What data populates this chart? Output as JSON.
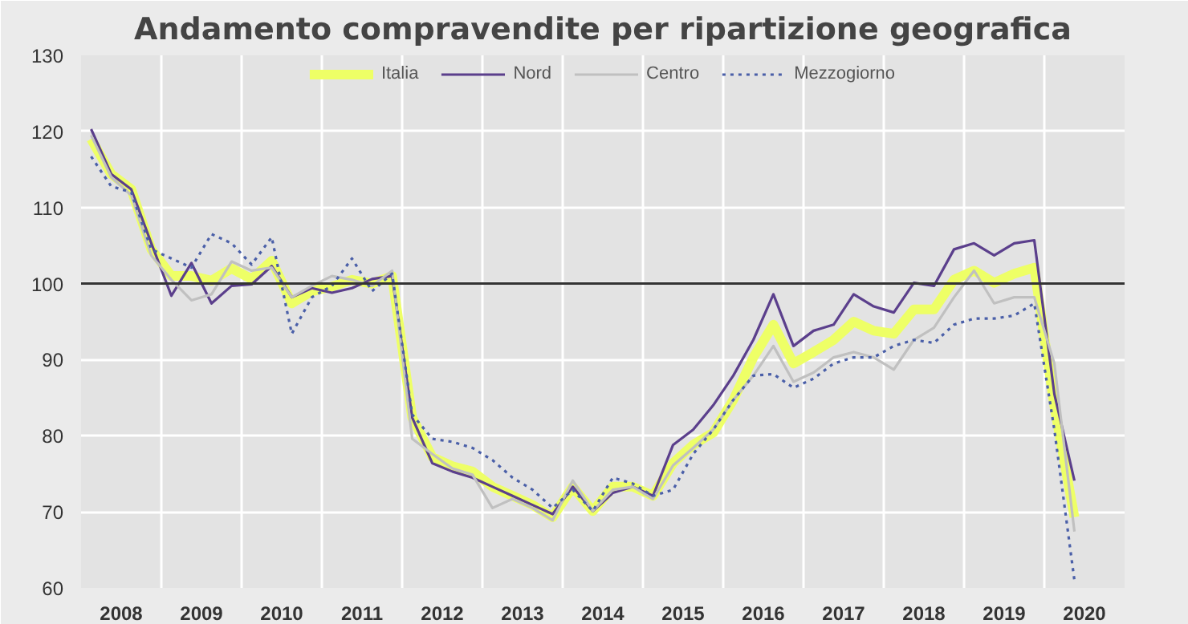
{
  "chart_data": {
    "type": "line",
    "title": "Andamento compravendite per ripartizione geografica",
    "x": [
      2008.125,
      2008.375,
      2008.625,
      2008.875,
      2009.125,
      2009.375,
      2009.625,
      2009.875,
      2010.125,
      2010.375,
      2010.625,
      2010.875,
      2011.125,
      2011.375,
      2011.625,
      2011.875,
      2012.125,
      2012.375,
      2012.625,
      2012.875,
      2013.125,
      2013.375,
      2013.625,
      2013.875,
      2014.125,
      2014.375,
      2014.625,
      2014.875,
      2015.125,
      2015.375,
      2015.625,
      2015.875,
      2016.125,
      2016.375,
      2016.625,
      2016.875,
      2017.125,
      2017.375,
      2017.625,
      2017.875,
      2018.125,
      2018.375,
      2018.625,
      2018.875,
      2019.125,
      2019.375,
      2019.625,
      2019.875,
      2020.125,
      2020.375
    ],
    "series": [
      {
        "name": "Italia",
        "color": "#eeff66",
        "values": [
          119.0,
          114.4,
          112.4,
          104.5,
          101.0,
          101.0,
          100.4,
          102.0,
          100.6,
          103.0,
          97.4,
          99.0,
          99.6,
          100.5,
          100.0,
          101.0,
          82.4,
          77.2,
          76.0,
          75.3,
          73.3,
          72.1,
          70.9,
          69.3,
          73.3,
          70.1,
          73.3,
          73.3,
          72.1,
          76.4,
          78.8,
          80.4,
          84.7,
          90.3,
          94.6,
          89.5,
          91.0,
          92.6,
          95.0,
          93.8,
          93.4,
          96.6,
          96.6,
          100.5,
          101.7,
          100.1,
          101.3,
          102.1,
          83.9,
          69.3
        ]
      },
      {
        "name": "Nord",
        "color": "#5b3f8c",
        "values": [
          120.3,
          114.4,
          112.4,
          105.3,
          98.4,
          102.7,
          97.4,
          99.7,
          99.9,
          102.3,
          98.2,
          99.4,
          98.8,
          99.4,
          100.6,
          101.0,
          82.4,
          76.4,
          75.3,
          74.5,
          73.3,
          72.1,
          70.9,
          69.7,
          73.3,
          70.1,
          72.5,
          73.3,
          72.1,
          78.8,
          80.8,
          84.0,
          87.9,
          92.6,
          98.6,
          91.8,
          93.8,
          94.6,
          98.6,
          97.0,
          96.2,
          100.1,
          99.7,
          104.5,
          105.3,
          103.7,
          105.3,
          105.7,
          85.5,
          74.1
        ]
      },
      {
        "name": "Centro",
        "color": "#c0c0c0",
        "values": [
          119.5,
          114.0,
          111.6,
          103.7,
          100.5,
          97.8,
          98.6,
          102.9,
          101.7,
          102.1,
          98.2,
          99.7,
          101.0,
          100.5,
          99.7,
          101.7,
          79.6,
          77.6,
          75.7,
          74.9,
          70.5,
          71.7,
          70.5,
          68.9,
          74.1,
          70.1,
          72.9,
          73.3,
          71.7,
          76.1,
          78.4,
          80.8,
          84.7,
          87.9,
          91.8,
          87.1,
          88.3,
          90.3,
          91.0,
          90.3,
          88.7,
          92.6,
          94.2,
          98.2,
          101.7,
          97.4,
          98.2,
          98.2,
          89.5,
          67.4
        ]
      },
      {
        "name": "Mezzogiorno",
        "color": "#4a5fa8",
        "line_style": "dotted",
        "values": [
          116.7,
          112.8,
          112.0,
          104.5,
          103.3,
          102.1,
          106.5,
          105.3,
          102.5,
          106.1,
          93.4,
          98.2,
          99.7,
          103.3,
          99.0,
          101.3,
          82.8,
          79.6,
          79.2,
          78.4,
          76.8,
          74.5,
          72.9,
          70.5,
          72.9,
          70.1,
          74.5,
          73.7,
          72.1,
          72.9,
          77.6,
          80.8,
          84.7,
          87.9,
          88.1,
          86.3,
          87.5,
          89.5,
          90.3,
          90.3,
          91.8,
          92.6,
          92.2,
          94.6,
          95.4,
          95.4,
          95.8,
          97.4,
          80.8,
          61.0
        ]
      }
    ],
    "xlim": [
      2008,
      2021
    ],
    "xticks": [
      {
        "value": 2008,
        "label": null
      },
      {
        "value": 2008.5,
        "label": "2008"
      },
      {
        "value": 2009,
        "label": null
      },
      {
        "value": 2009.5,
        "label": "2009"
      },
      {
        "value": 2010,
        "label": null
      },
      {
        "value": 2010.5,
        "label": "2010"
      },
      {
        "value": 2011,
        "label": null
      },
      {
        "value": 2011.5,
        "label": "2011"
      },
      {
        "value": 2012,
        "label": null
      },
      {
        "value": 2012.5,
        "label": "2012"
      },
      {
        "value": 2013,
        "label": null
      },
      {
        "value": 2013.5,
        "label": "2013"
      },
      {
        "value": 2014,
        "label": null
      },
      {
        "value": 2014.5,
        "label": "2014"
      },
      {
        "value": 2015,
        "label": null
      },
      {
        "value": 2015.5,
        "label": "2015"
      },
      {
        "value": 2016,
        "label": null
      },
      {
        "value": 2016.5,
        "label": "2016"
      },
      {
        "value": 2017,
        "label": null
      },
      {
        "value": 2017.5,
        "label": "2017"
      },
      {
        "value": 2018,
        "label": null
      },
      {
        "value": 2018.5,
        "label": "2018"
      },
      {
        "value": 2019,
        "label": null
      },
      {
        "value": 2019.5,
        "label": "2019"
      },
      {
        "value": 2020,
        "label": null
      },
      {
        "value": 2020.5,
        "label": "2020"
      },
      {
        "value": 2021,
        "label": null
      }
    ],
    "ylim": [
      60,
      130
    ],
    "yticks": [
      60,
      70,
      80,
      90,
      100,
      110,
      120,
      130
    ],
    "ref_lines": [
      {
        "axis": "y",
        "value": 100,
        "color": "#333333"
      }
    ],
    "grid": true,
    "legend": "top",
    "marker": "none",
    "line_style": "solid"
  }
}
